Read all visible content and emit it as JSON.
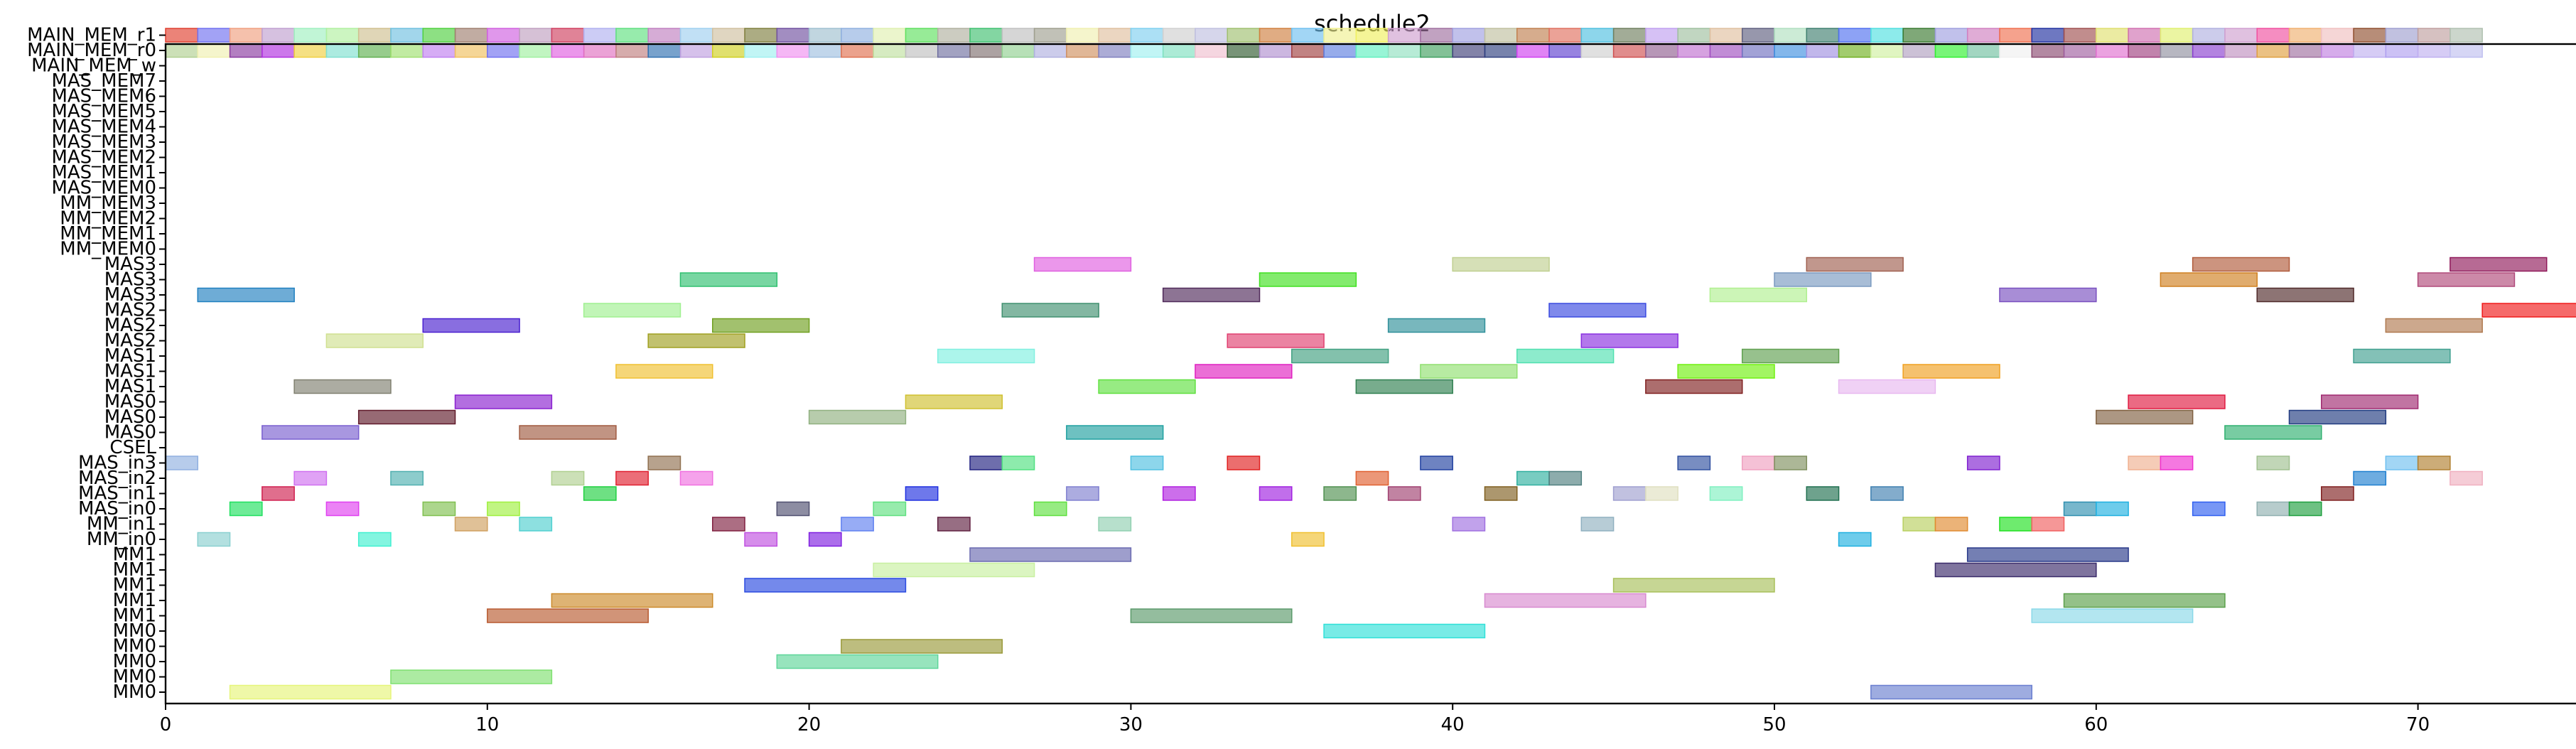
{
  "chart_data": {
    "type": "gantt",
    "title": "schedule2",
    "xlabel": "",
    "ylabel": "",
    "xlim": [
      0,
      75
    ],
    "x_ticks": [
      0,
      10,
      20,
      30,
      40,
      50,
      60,
      70
    ],
    "rows": [
      "MM0",
      "MM0",
      "MM0",
      "MM0",
      "MM0",
      "MM1",
      "MM1",
      "MM1",
      "MM1",
      "MM1",
      "MM_in0",
      "MM_in1",
      "MAS_in0",
      "MAS_in1",
      "MAS_in2",
      "MAS_in3",
      "CSEL",
      "MAS0",
      "MAS0",
      "MAS0",
      "MAS1",
      "MAS1",
      "MAS1",
      "MAS2",
      "MAS2",
      "MAS2",
      "MAS3",
      "MAS3",
      "MAS3",
      "MM_MEM0",
      "MM_MEM1",
      "MM_MEM2",
      "MM_MEM3",
      "MAS_MEM0",
      "MAS_MEM1",
      "MAS_MEM2",
      "MAS_MEM3",
      "MAS_MEM4",
      "MAS_MEM5",
      "MAS_MEM6",
      "MAS_MEM7",
      "MAIN_MEM_w",
      "MAIN_MEM_r0",
      "MAIN_MEM_r1"
    ],
    "tasks": [
      {
        "row": 0,
        "start": 2,
        "end": 7,
        "color": "#e6f57a"
      },
      {
        "row": 0,
        "start": 53,
        "end": 58,
        "color": "#6a7fd0"
      },
      {
        "row": 1,
        "start": 7,
        "end": 12,
        "color": "#7fe070"
      },
      {
        "row": 2,
        "start": 19,
        "end": 24,
        "color": "#5fd69a"
      },
      {
        "row": 3,
        "start": 21,
        "end": 26,
        "color": "#9a9a3a"
      },
      {
        "row": 4,
        "start": 36,
        "end": 41,
        "color": "#30e0d8"
      },
      {
        "row": 5,
        "start": 10,
        "end": 15,
        "color": "#b85a30"
      },
      {
        "row": 5,
        "start": 30,
        "end": 35,
        "color": "#5a9a6a"
      },
      {
        "row": 5,
        "start": 58,
        "end": 63,
        "color": "#8ad8e8"
      },
      {
        "row": 6,
        "start": 12,
        "end": 17,
        "color": "#cc8a2a"
      },
      {
        "row": 6,
        "start": 41,
        "end": 46,
        "color": "#d88ad0"
      },
      {
        "row": 6,
        "start": 59,
        "end": 64,
        "color": "#5aa04a"
      },
      {
        "row": 7,
        "start": 18,
        "end": 23,
        "color": "#2a4ae0"
      },
      {
        "row": 7,
        "start": 45,
        "end": 50,
        "color": "#a8c05a"
      },
      {
        "row": 8,
        "start": 22,
        "end": 27,
        "color": "#c8f0a0"
      },
      {
        "row": 8,
        "start": 55,
        "end": 60,
        "color": "#3a2a6a"
      },
      {
        "row": 9,
        "start": 25,
        "end": 30,
        "color": "#6a6ab0"
      },
      {
        "row": 9,
        "start": 56,
        "end": 61,
        "color": "#2a3a8a"
      },
      {
        "row": 10,
        "start": 1,
        "end": 2,
        "color": "#8ad0d0"
      },
      {
        "row": 10,
        "start": 6,
        "end": 7,
        "color": "#40f0d0"
      },
      {
        "row": 10,
        "start": 18,
        "end": 19,
        "color": "#c050e0"
      },
      {
        "row": 10,
        "start": 20,
        "end": 21,
        "color": "#8020e0"
      },
      {
        "row": 10,
        "start": 35,
        "end": 36,
        "color": "#f0c030"
      },
      {
        "row": 10,
        "start": 52,
        "end": 53,
        "color": "#20b0e0"
      },
      {
        "row": 11,
        "start": 9,
        "end": 10,
        "color": "#d0a060"
      },
      {
        "row": 11,
        "start": 11,
        "end": 12,
        "color": "#50d0d0"
      },
      {
        "row": 11,
        "start": 17,
        "end": 18,
        "color": "#802040"
      },
      {
        "row": 11,
        "start": 21,
        "end": 22,
        "color": "#6080f0"
      },
      {
        "row": 11,
        "start": 24,
        "end": 25,
        "color": "#602040"
      },
      {
        "row": 11,
        "start": 29,
        "end": 30,
        "color": "#90d0b0"
      },
      {
        "row": 11,
        "start": 40,
        "end": 41,
        "color": "#a070e0"
      },
      {
        "row": 11,
        "start": 44,
        "end": 45,
        "color": "#90b0c0"
      },
      {
        "row": 11,
        "start": 54,
        "end": 55,
        "color": "#b8d060"
      },
      {
        "row": 11,
        "start": 55,
        "end": 56,
        "color": "#e08a30"
      },
      {
        "row": 11,
        "start": 57,
        "end": 58,
        "color": "#20e020"
      },
      {
        "row": 11,
        "start": 58,
        "end": 59,
        "color": "#f06060"
      },
      {
        "row": 12,
        "start": 2,
        "end": 3,
        "color": "#20e060"
      },
      {
        "row": 12,
        "start": 5,
        "end": 6,
        "color": "#e040f0"
      },
      {
        "row": 12,
        "start": 8,
        "end": 9,
        "color": "#80c050"
      },
      {
        "row": 12,
        "start": 10,
        "end": 11,
        "color": "#a0f040"
      },
      {
        "row": 12,
        "start": 19,
        "end": 20,
        "color": "#505070"
      },
      {
        "row": 12,
        "start": 22,
        "end": 23,
        "color": "#60e080"
      },
      {
        "row": 12,
        "start": 27,
        "end": 28,
        "color": "#60e040"
      },
      {
        "row": 12,
        "start": 59,
        "end": 60,
        "color": "#3090b0"
      },
      {
        "row": 12,
        "start": 60,
        "end": 61,
        "color": "#20b0e0"
      },
      {
        "row": 12,
        "start": 63,
        "end": 64,
        "color": "#3060f0"
      },
      {
        "row": 12,
        "start": 65,
        "end": 66,
        "color": "#90b0b0"
      },
      {
        "row": 12,
        "start": 66,
        "end": 67,
        "color": "#20a040"
      },
      {
        "row": 13,
        "start": 3,
        "end": 4,
        "color": "#d02050"
      },
      {
        "row": 13,
        "start": 13,
        "end": 14,
        "color": "#20d040"
      },
      {
        "row": 13,
        "start": 23,
        "end": 24,
        "color": "#2030e0"
      },
      {
        "row": 13,
        "start": 28,
        "end": 29,
        "color": "#8080d0"
      },
      {
        "row": 13,
        "start": 31,
        "end": 32,
        "color": "#b020e0"
      },
      {
        "row": 13,
        "start": 34,
        "end": 35,
        "color": "#a020e0"
      },
      {
        "row": 13,
        "start": 36,
        "end": 37,
        "color": "#509050"
      },
      {
        "row": 13,
        "start": 38,
        "end": 39,
        "color": "#a04070"
      },
      {
        "row": 13,
        "start": 41,
        "end": 42,
        "color": "#806020"
      },
      {
        "row": 13,
        "start": 45,
        "end": 46,
        "color": "#a0a0d0"
      },
      {
        "row": 13,
        "start": 46,
        "end": 47,
        "color": "#e0e0c0"
      },
      {
        "row": 13,
        "start": 48,
        "end": 49,
        "color": "#80f0c0"
      },
      {
        "row": 13,
        "start": 51,
        "end": 52,
        "color": "#207050"
      },
      {
        "row": 13,
        "start": 53,
        "end": 54,
        "color": "#4080b0"
      },
      {
        "row": 13,
        "start": 67,
        "end": 68,
        "color": "#802020"
      },
      {
        "row": 14,
        "start": 4,
        "end": 5,
        "color": "#d070f0"
      },
      {
        "row": 14,
        "start": 7,
        "end": 8,
        "color": "#50b0b0"
      },
      {
        "row": 14,
        "start": 12,
        "end": 13,
        "color": "#b0d090"
      },
      {
        "row": 14,
        "start": 14,
        "end": 15,
        "color": "#e02030"
      },
      {
        "row": 14,
        "start": 16,
        "end": 17,
        "color": "#f070e0"
      },
      {
        "row": 14,
        "start": 37,
        "end": 38,
        "color": "#e06030"
      },
      {
        "row": 14,
        "start": 42,
        "end": 43,
        "color": "#30b0a0"
      },
      {
        "row": 14,
        "start": 43,
        "end": 44,
        "color": "#508080"
      },
      {
        "row": 14,
        "start": 68,
        "end": 69,
        "color": "#2080d0"
      },
      {
        "row": 14,
        "start": 71,
        "end": 72,
        "color": "#f0b0c0"
      },
      {
        "row": 15,
        "start": 0,
        "end": 1,
        "color": "#90b0e0"
      },
      {
        "row": 15,
        "start": 15,
        "end": 16,
        "color": "#907050"
      },
      {
        "row": 15,
        "start": 25,
        "end": 26,
        "color": "#202080"
      },
      {
        "row": 15,
        "start": 26,
        "end": 27,
        "color": "#50e080"
      },
      {
        "row": 15,
        "start": 30,
        "end": 31,
        "color": "#50c0e0"
      },
      {
        "row": 15,
        "start": 33,
        "end": 34,
        "color": "#e02020"
      },
      {
        "row": 15,
        "start": 39,
        "end": 40,
        "color": "#2040a0"
      },
      {
        "row": 15,
        "start": 47,
        "end": 48,
        "color": "#3050a0"
      },
      {
        "row": 15,
        "start": 49,
        "end": 50,
        "color": "#f0a0c0"
      },
      {
        "row": 15,
        "start": 50,
        "end": 51,
        "color": "#809060"
      },
      {
        "row": 15,
        "start": 56,
        "end": 57,
        "color": "#8020d0"
      },
      {
        "row": 15,
        "start": 61,
        "end": 62,
        "color": "#f0b090"
      },
      {
        "row": 15,
        "start": 62,
        "end": 63,
        "color": "#f030d0"
      },
      {
        "row": 15,
        "start": 65,
        "end": 66,
        "color": "#a0c090"
      },
      {
        "row": 15,
        "start": 69,
        "end": 70,
        "color": "#70c0f0"
      },
      {
        "row": 15,
        "start": 70,
        "end": 71,
        "color": "#b08030"
      },
      {
        "row": 17,
        "start": 3,
        "end": 6,
        "color": "#7a60d0"
      },
      {
        "row": 17,
        "start": 11,
        "end": 14,
        "color": "#a05a40"
      },
      {
        "row": 17,
        "start": 28,
        "end": 31,
        "color": "#20a0a0"
      },
      {
        "row": 17,
        "start": 64,
        "end": 67,
        "color": "#30b070"
      },
      {
        "row": 18,
        "start": 6,
        "end": 9,
        "color": "#601a2a"
      },
      {
        "row": 18,
        "start": 20,
        "end": 23,
        "color": "#90b080"
      },
      {
        "row": 18,
        "start": 60,
        "end": 63,
        "color": "#806040"
      },
      {
        "row": 18,
        "start": 66,
        "end": 69,
        "color": "#203a80"
      },
      {
        "row": 19,
        "start": 9,
        "end": 12,
        "color": "#8a20d0"
      },
      {
        "row": 19,
        "start": 23,
        "end": 26,
        "color": "#d0c030"
      },
      {
        "row": 19,
        "start": 61,
        "end": 64,
        "color": "#e01a40"
      },
      {
        "row": 19,
        "start": 67,
        "end": 70,
        "color": "#a02a70"
      },
      {
        "row": 20,
        "start": 4,
        "end": 7,
        "color": "#808070"
      },
      {
        "row": 20,
        "start": 29,
        "end": 32,
        "color": "#60e040"
      },
      {
        "row": 20,
        "start": 37,
        "end": 40,
        "color": "#308050"
      },
      {
        "row": 20,
        "start": 46,
        "end": 49,
        "color": "#802020"
      },
      {
        "row": 20,
        "start": 52,
        "end": 55,
        "color": "#e8b8f0"
      },
      {
        "row": 21,
        "start": 14,
        "end": 17,
        "color": "#f0c030"
      },
      {
        "row": 21,
        "start": 32,
        "end": 35,
        "color": "#e020c0"
      },
      {
        "row": 21,
        "start": 39,
        "end": 42,
        "color": "#90e070"
      },
      {
        "row": 21,
        "start": 47,
        "end": 50,
        "color": "#70f010"
      },
      {
        "row": 21,
        "start": 54,
        "end": 57,
        "color": "#f0a020"
      },
      {
        "row": 22,
        "start": 24,
        "end": 27,
        "color": "#80f0e0"
      },
      {
        "row": 22,
        "start": 35,
        "end": 38,
        "color": "#40a080"
      },
      {
        "row": 22,
        "start": 42,
        "end": 45,
        "color": "#50e0b0"
      },
      {
        "row": 22,
        "start": 49,
        "end": 52,
        "color": "#60a050"
      },
      {
        "row": 22,
        "start": 68,
        "end": 71,
        "color": "#40a090"
      },
      {
        "row": 23,
        "start": 5,
        "end": 8,
        "color": "#d0e090"
      },
      {
        "row": 23,
        "start": 15,
        "end": 18,
        "color": "#a0a020"
      },
      {
        "row": 23,
        "start": 33,
        "end": 36,
        "color": "#e04070"
      },
      {
        "row": 23,
        "start": 44,
        "end": 47,
        "color": "#8a30e0"
      },
      {
        "row": 24,
        "start": 8,
        "end": 11,
        "color": "#4a20d0"
      },
      {
        "row": 24,
        "start": 17,
        "end": 20,
        "color": "#70a020"
      },
      {
        "row": 24,
        "start": 38,
        "end": 41,
        "color": "#30909a"
      },
      {
        "row": 24,
        "start": 69,
        "end": 72,
        "color": "#b07a50"
      },
      {
        "row": 25,
        "start": 13,
        "end": 16,
        "color": "#a0f090"
      },
      {
        "row": 25,
        "start": 26,
        "end": 29,
        "color": "#409070"
      },
      {
        "row": 25,
        "start": 43,
        "end": 46,
        "color": "#3a4ae0"
      },
      {
        "row": 25,
        "start": 72,
        "end": 75,
        "color": "#f01a1a"
      },
      {
        "row": 26,
        "start": 1,
        "end": 4,
        "color": "#2080c0"
      },
      {
        "row": 26,
        "start": 31,
        "end": 34,
        "color": "#502a5a"
      },
      {
        "row": 26,
        "start": 48,
        "end": 51,
        "color": "#b0f090"
      },
      {
        "row": 26,
        "start": 57,
        "end": 60,
        "color": "#7a50c0"
      },
      {
        "row": 26,
        "start": 65,
        "end": 68,
        "color": "#502a2a"
      },
      {
        "row": 27,
        "start": 16,
        "end": 19,
        "color": "#30c070"
      },
      {
        "row": 27,
        "start": 34,
        "end": 37,
        "color": "#40e020"
      },
      {
        "row": 27,
        "start": 50,
        "end": 53,
        "color": "#7a9ac0"
      },
      {
        "row": 27,
        "start": 62,
        "end": 65,
        "color": "#d08020"
      },
      {
        "row": 27,
        "start": 70,
        "end": 73,
        "color": "#b04a7a"
      },
      {
        "row": 28,
        "start": 27,
        "end": 30,
        "color": "#e060e0"
      },
      {
        "row": 28,
        "start": 40,
        "end": 43,
        "color": "#c0d090"
      },
      {
        "row": 28,
        "start": 51,
        "end": 54,
        "color": "#a06050"
      },
      {
        "row": 28,
        "start": 63,
        "end": 66,
        "color": "#b05a3a"
      },
      {
        "row": 28,
        "start": 71,
        "end": 74,
        "color": "#901a5a"
      },
      {
        "row": 42,
        "start": 0,
        "end": 72,
        "colors": [
          "#b0d090",
          "#f0f0b0",
          "#8a3aa0",
          "#b030e0",
          "#f0d040",
          "#80e0d0",
          "#60b050",
          "#a0e070",
          "#c080f0",
          "#f0c060",
          "#7070f0",
          "#a0f0a0",
          "#e060e0",
          "#e070c0",
          "#c08080",
          "#3070b0",
          "#c0a0e0",
          "#d0d020",
          "#a0f0f0",
          "#f090f0",
          "#a0c0e0",
          "#e07050",
          "#c0e0a0",
          "#c0c0c0",
          "#7070a0",
          "#807070",
          "#90d090",
          "#b0b0e0",
          "#d09060",
          "#8080c0",
          "#a0f0f0",
          "#80e0c0",
          "#f0c0d0",
          "#305a30",
          "#b090d0",
          "#a04040",
          "#6080e0",
          "#60f0c0",
          "#90e0c0",
          "#40a060",
          "#40407a",
          "#304080",
          "#d040f0",
          "#6040d0",
          "#d0d0d0",
          "#d05050",
          "#906090",
          "#c070d0",
          "#a050c0",
          "#7070c0",
          "#4090e0",
          "#a090e0",
          "#70b020",
          "#d0f0a0",
          "#b0a0c0",
          "#30f030",
          "#70c0a0",
          "#f0f0f0",
          "#8a4a70",
          "#a060a0",
          "#e070d0",
          "#a04080",
          "#9090a0",
          "#8a40d0",
          "#c090c0",
          "#e0a040",
          "#a070a0",
          "#c080e0",
          "#c0b0f0",
          "#b0a0f0",
          "#c0b0f0",
          "#c0c0f0"
        ]
      },
      {
        "row": 43,
        "start": 0,
        "end": 72,
        "colors": [
          "#e04030",
          "#7070f0",
          "#f0a080",
          "#c0a0d0",
          "#a0f0c0",
          "#b0f0a0",
          "#d0c090",
          "#70c0e0",
          "#50d040",
          "#a08070",
          "#d060e0",
          "#c0a0c0",
          "#d04060",
          "#b0b0f0",
          "#60e080",
          "#c080c0",
          "#a0d0f0",
          "#d0c0a0",
          "#808040",
          "#7050a0",
          "#a0c0d0",
          "#90b0e0",
          "#e0f0b0",
          "#60e060",
          "#b0b0a0",
          "#40c070",
          "#c0c0c0",
          "#a0a090",
          "#f0f0b0",
          "#e0c0a0",
          "#80d0f0",
          "#d0d0d0",
          "#c0c0e0",
          "#a0c070",
          "#d08040",
          "#70c0f0",
          "#f0f090",
          "#f0f060",
          "#d0a0d0",
          "#a070a0",
          "#a0a0e0",
          "#c0c0a0",
          "#c08050",
          "#e07060",
          "#50c0e0",
          "#708060",
          "#c0a0f0",
          "#a0c0a0",
          "#e0c0a0",
          "#606080",
          "#b0e0c0",
          "#408070",
          "#5070f0",
          "#50e0e0",
          "#3a7a30",
          "#a0a0e0",
          "#d080c0",
          "#f07050",
          "#2030a0",
          "#a05050",
          "#e0e070",
          "#d070b0",
          "#e0f070",
          "#b0b0e0",
          "#d0a0d0",
          "#f050a0",
          "#f0b070",
          "#f0c0c0",
          "#905030",
          "#a0a0d0",
          "#c0a0a0",
          "#b0c0b0"
        ]
      }
    ]
  }
}
